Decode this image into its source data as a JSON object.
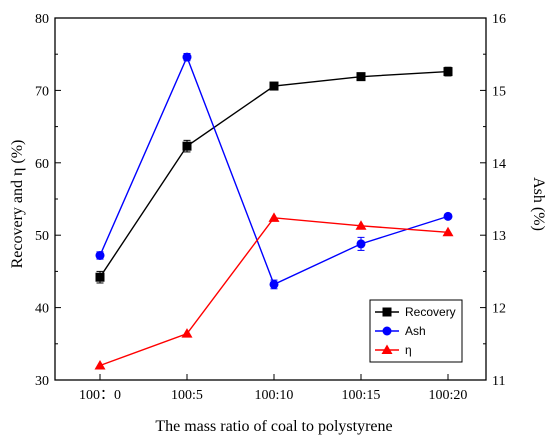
{
  "chart_data": {
    "type": "line",
    "xlabel": "The mass ratio of coal to polystyrene",
    "ylabel_left": "Recovery and η (%)",
    "ylabel_right": "Ash (%)",
    "categories": [
      "100：0",
      "100:5",
      "100:10",
      "100:15",
      "100:20"
    ],
    "ylim_left": [
      30,
      80
    ],
    "yticks_left": [
      30,
      40,
      50,
      60,
      70,
      80
    ],
    "ylim_right": [
      11,
      16
    ],
    "yticks_right": [
      11,
      12,
      13,
      14,
      15,
      16
    ],
    "grid": false,
    "legend_position": "lower-right",
    "series": [
      {
        "name": "Recovery",
        "axis": "left",
        "color": "#000000",
        "marker": "square",
        "values": [
          44.2,
          62.3,
          70.6,
          71.9,
          72.6
        ],
        "errors": [
          0.8,
          0.8,
          0.5,
          0.5,
          0.6
        ]
      },
      {
        "name": "Ash",
        "axis": "right",
        "color": "#0000ff",
        "marker": "circle",
        "values": [
          12.72,
          15.46,
          12.32,
          12.88,
          13.26
        ],
        "errors": [
          0.05,
          0.05,
          0.06,
          0.09,
          0.03
        ]
      },
      {
        "name": "η",
        "axis": "left",
        "color": "#ff0000",
        "marker": "triangle",
        "values": [
          32.0,
          36.4,
          52.4,
          51.3,
          50.4
        ],
        "errors": [
          0,
          0,
          0,
          0,
          0
        ]
      }
    ]
  }
}
